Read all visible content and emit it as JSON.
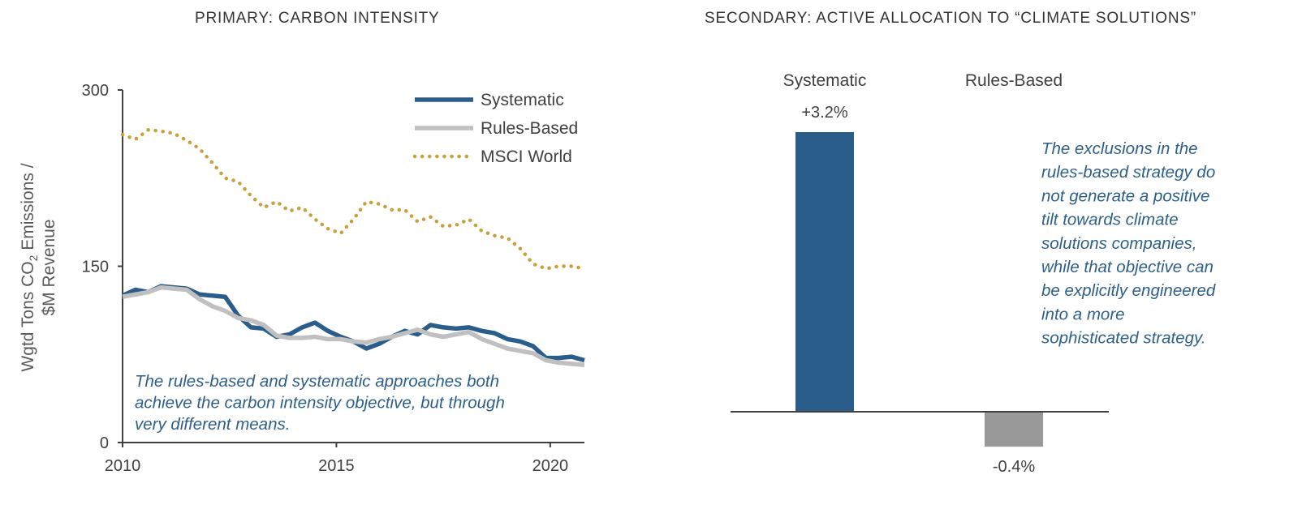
{
  "colors": {
    "systematic": "#2b5d8a",
    "rules_based": "#c0c0c0",
    "rules_bar": "#999999",
    "msci": "#c9a03a",
    "annotation": "#2d5f8b",
    "axis": "#404040"
  },
  "chart_data": [
    {
      "type": "line",
      "title": "PRIMARY: CARBON INTENSITY",
      "ylabel_line1": "Wgtd Tons CO",
      "ylabel_sub": "2",
      "ylabel_line1_end": " Emissions /",
      "ylabel_line2": "$M Revenue",
      "xlim": [
        2010,
        2020.8
      ],
      "ylim": [
        0,
        300
      ],
      "yticks": [
        "0",
        "150",
        "300"
      ],
      "xticks": [
        "2010",
        "2015",
        "2020"
      ],
      "legend_position": "top-right",
      "x": [
        2010.0,
        2010.3,
        2010.6,
        2010.9,
        2011.2,
        2011.5,
        2011.8,
        2012.1,
        2012.4,
        2012.7,
        2013.0,
        2013.3,
        2013.6,
        2013.9,
        2014.2,
        2014.5,
        2014.8,
        2015.1,
        2015.4,
        2015.7,
        2016.0,
        2016.3,
        2016.6,
        2016.9,
        2017.2,
        2017.5,
        2017.8,
        2018.1,
        2018.4,
        2018.7,
        2019.0,
        2019.3,
        2019.6,
        2019.9,
        2020.2,
        2020.5,
        2020.8
      ],
      "series": [
        {
          "name": "Systematic",
          "style": "solid",
          "values": [
            125,
            130,
            128,
            133,
            132,
            131,
            126,
            125,
            124,
            108,
            98,
            97,
            90,
            92,
            98,
            102,
            95,
            90,
            86,
            80,
            84,
            90,
            95,
            92,
            100,
            98,
            97,
            98,
            95,
            93,
            88,
            86,
            82,
            72,
            72,
            73,
            70
          ]
        },
        {
          "name": "Rules-Based",
          "style": "solid",
          "values": [
            124,
            126,
            128,
            132,
            131,
            130,
            122,
            116,
            112,
            106,
            104,
            100,
            91,
            89,
            89,
            90,
            88,
            88,
            86,
            85,
            88,
            90,
            93,
            96,
            92,
            90,
            92,
            94,
            88,
            84,
            80,
            78,
            76,
            70,
            68,
            67,
            66
          ]
        },
        {
          "name": "MSCI World",
          "style": "dotted",
          "values": [
            262,
            258,
            266,
            265,
            263,
            257,
            250,
            238,
            225,
            222,
            210,
            200,
            205,
            197,
            200,
            190,
            182,
            178,
            190,
            205,
            203,
            198,
            198,
            188,
            192,
            184,
            185,
            190,
            180,
            176,
            174,
            165,
            152,
            148,
            150,
            150,
            148
          ]
        }
      ],
      "annotation": "The rules-based and systematic approaches both achieve the carbon intensity objective, but through very different means.",
      "annotation_lines": [
        "The rules-based and systematic approaches both",
        "achieve the carbon intensity objective, but through",
        "very different means."
      ]
    },
    {
      "type": "bar",
      "title": "SECONDARY: ACTIVE ALLOCATION TO “CLIMATE SOLUTIONS”",
      "categories": [
        "Systematic",
        "Rules-Based"
      ],
      "values": [
        3.2,
        -0.4
      ],
      "value_labels": [
        "+3.2%",
        "-0.4%"
      ],
      "annotation": "The exclusions in the rules-based strategy do not generate a positive tilt towards climate solutions companies, while that objective can be explicitly engineered into a more sophisticated strategy.",
      "annotation_lines": [
        "The exclusions in the",
        "rules-based strategy do",
        "not generate a positive",
        "tilt towards climate",
        "solutions companies,",
        "while that objective can",
        "be explicitly engineered",
        "into a more",
        "sophisticated strategy."
      ]
    }
  ]
}
